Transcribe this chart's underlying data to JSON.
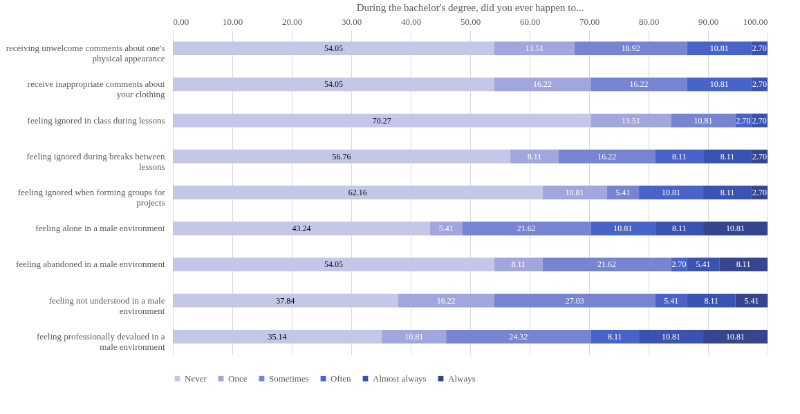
{
  "chart_data": {
    "type": "bar",
    "orientation": "horizontal",
    "stacked": true,
    "title": "During the bachelor's degree, did you ever happen to...",
    "categories": [
      "receiving unwelcome comments about one's physical appearance",
      "receive inappropriate comments about your clothing",
      "feeling ignored in class during lessons",
      "feeling ignored during breaks between lessons",
      "feeling ignored when forming groups for projects",
      "feeling alone in a male environment",
      "feeling abandoned in a male environment",
      "feeling not understood in a male environment",
      "feeling professionally devalued in a male environment"
    ],
    "series": [
      {
        "name": "Never",
        "color": "#c4c7e8",
        "values": [
          54.05,
          54.05,
          70.27,
          56.76,
          62.16,
          43.24,
          54.05,
          37.84,
          35.14
        ],
        "value_labels": [
          "54.05",
          "54.05",
          "70.27",
          "56.76",
          "62.16",
          "43.24",
          "54.05",
          "37.84",
          "35.14"
        ]
      },
      {
        "name": "Once",
        "color": "#a1a7dc",
        "values": [
          13.51,
          16.22,
          13.51,
          8.11,
          10.81,
          5.41,
          8.11,
          16.22,
          10.81
        ],
        "value_labels": [
          "13.51",
          "16.22",
          "13.51",
          "8.11",
          "10.81",
          "5.41",
          "8.11",
          "16.22",
          "10.81"
        ]
      },
      {
        "name": "Sometimes",
        "color": "#7684d1",
        "values": [
          18.92,
          16.22,
          10.81,
          16.22,
          5.41,
          21.62,
          21.62,
          27.03,
          24.32
        ],
        "value_labels": [
          "18.92",
          "16.22",
          "10.81",
          "16.22",
          "5.41",
          "21.62",
          "21.62",
          "27.03",
          "24.32"
        ]
      },
      {
        "name": "Often",
        "color": "#4a63c8",
        "values": [
          10.81,
          10.81,
          2.7,
          8.11,
          10.81,
          10.81,
          2.7,
          5.41,
          8.11
        ],
        "value_labels": [
          "10.81",
          "10.81",
          "2.70",
          "8.11",
          "10.81",
          "10.81",
          "2.70",
          "5.41",
          "8.11"
        ]
      },
      {
        "name": "Almost always",
        "color": "#3b53b0",
        "values": [
          2.7,
          2.7,
          2.7,
          8.11,
          8.11,
          8.11,
          5.41,
          8.11,
          10.81
        ],
        "value_labels": [
          "2.70",
          "2.70",
          "2.70",
          "8.11",
          "8.11",
          "8.11",
          "5.41",
          "8.11",
          "10.81"
        ]
      },
      {
        "name": "Always",
        "color": "#35468f",
        "values": [
          null,
          null,
          null,
          2.7,
          2.7,
          10.81,
          8.11,
          5.41,
          10.81
        ],
        "value_labels": [
          null,
          null,
          null,
          "2.70",
          "2.70",
          "10.81",
          "8.11",
          "5.41",
          "10.81"
        ]
      }
    ],
    "xlim": [
      0,
      100
    ],
    "xticks": [
      {
        "value": 0,
        "label": "0.00"
      },
      {
        "value": 10,
        "label": "10.00"
      },
      {
        "value": 20,
        "label": "20.00"
      },
      {
        "value": 30,
        "label": "30.00"
      },
      {
        "value": 40,
        "label": "40.00"
      },
      {
        "value": 50,
        "label": "50.00"
      },
      {
        "value": 60,
        "label": "60.00"
      },
      {
        "value": 70,
        "label": "70.00"
      },
      {
        "value": 80,
        "label": "80.00"
      },
      {
        "value": 90,
        "label": "90.00"
      },
      {
        "value": 100,
        "label": "100.00"
      }
    ],
    "grid": "x",
    "legend": "bottom"
  }
}
